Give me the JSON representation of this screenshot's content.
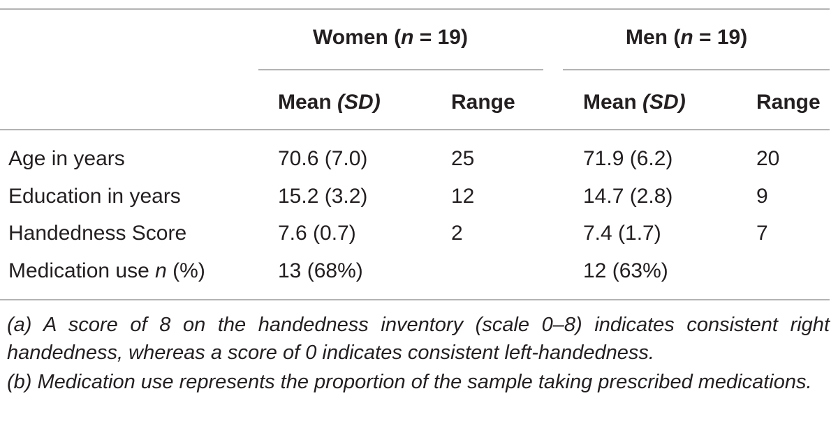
{
  "table": {
    "groups": [
      {
        "label": "Women (",
        "n_symbol": "n",
        "n_text": " = 19)"
      },
      {
        "label": "Men (",
        "n_symbol": "n",
        "n_text": " = 19)"
      }
    ],
    "subheaders": {
      "mean_label": "Mean ",
      "sd_label": "(SD)",
      "range_label": "Range"
    },
    "rows": [
      {
        "label": "Age in years",
        "label_italic": "",
        "label_suffix": "",
        "women_mean": "70.6 (7.0)",
        "women_range": "25",
        "men_mean": "71.9 (6.2)",
        "men_range": "20"
      },
      {
        "label": "Education in years",
        "label_italic": "",
        "label_suffix": "",
        "women_mean": "15.2 (3.2)",
        "women_range": "12",
        "men_mean": "14.7 (2.8)",
        "men_range": "9"
      },
      {
        "label": "Handedness Score",
        "label_italic": "",
        "label_suffix": "",
        "women_mean": "7.6 (0.7)",
        "women_range": "2",
        "men_mean": "7.4 (1.7)",
        "men_range": "7"
      },
      {
        "label": "Medication use ",
        "label_italic": "n",
        "label_suffix": " (%)",
        "women_mean": "13 (68%)",
        "women_range": "",
        "men_mean": "12 (63%)",
        "men_range": ""
      }
    ]
  },
  "footnotes": [
    "(a) A score of 8 on the handedness inventory (scale 0–8) indicates consistent right handedness, whereas a score of 0 indicates consistent left-handedness.",
    "(b) Medication use represents the proportion of the sample taking prescribed medications."
  ]
}
